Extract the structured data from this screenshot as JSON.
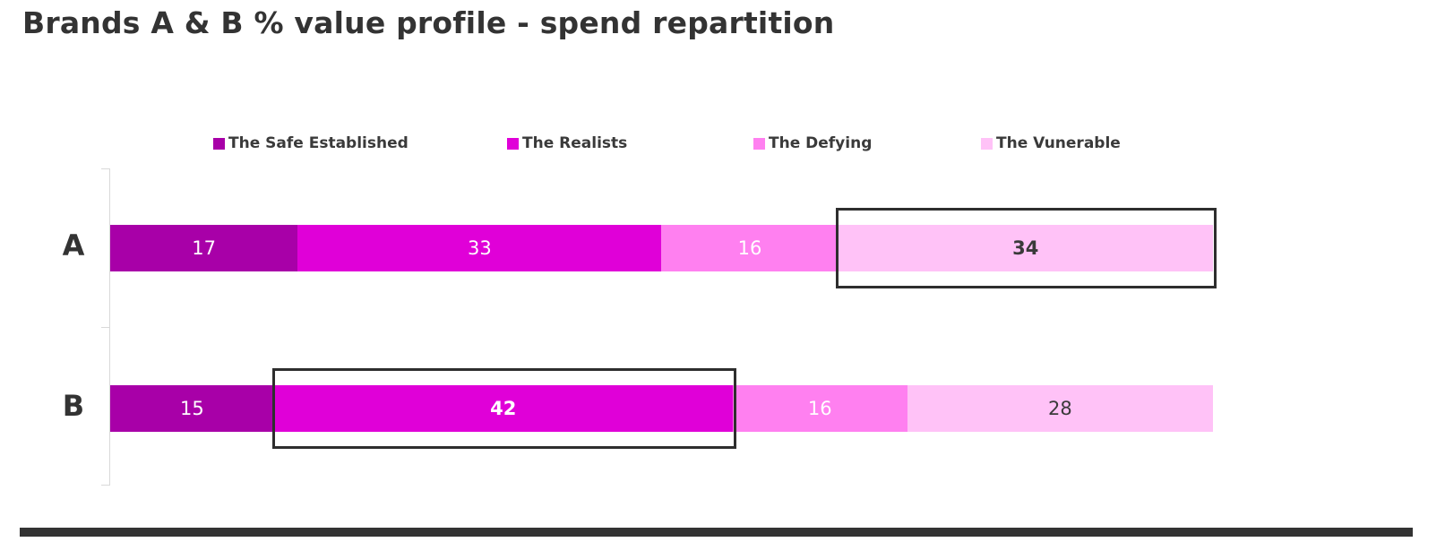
{
  "chart_data": {
    "type": "bar",
    "orientation": "horizontal",
    "stacked": true,
    "title": "Brands A & B % value profile - spend repartition",
    "categories": [
      "A",
      "B"
    ],
    "series": [
      {
        "name": "The Safe Established",
        "color": "#a800a8",
        "label_color": "#ffffff",
        "values": [
          17,
          15
        ]
      },
      {
        "name": "The Realists",
        "color": "#e000d8",
        "label_color": "#ffffff",
        "values": [
          33,
          42
        ]
      },
      {
        "name": "The Defying",
        "color": "#ff80f0",
        "label_color": "#ffffff",
        "values": [
          16,
          16
        ]
      },
      {
        "name": "The Vunerable",
        "color": "#ffc2f7",
        "label_color": "#3a3a3a",
        "values": [
          34,
          28
        ]
      }
    ],
    "value_labels": true,
    "highlights": [
      {
        "category": "A",
        "category_index": 0,
        "series": "The Vunerable",
        "series_index": 3,
        "value": 34
      },
      {
        "category": "B",
        "category_index": 1,
        "series": "The Realists",
        "series_index": 1,
        "value": 42
      }
    ],
    "legend_position": "top",
    "xlim": [
      0,
      100
    ],
    "grid": false
  },
  "colors": {
    "title_text": "#333333",
    "axis_line": "#d9d9d9",
    "highlight_border": "#2e2e2e",
    "bottom_rule": "#333333"
  }
}
